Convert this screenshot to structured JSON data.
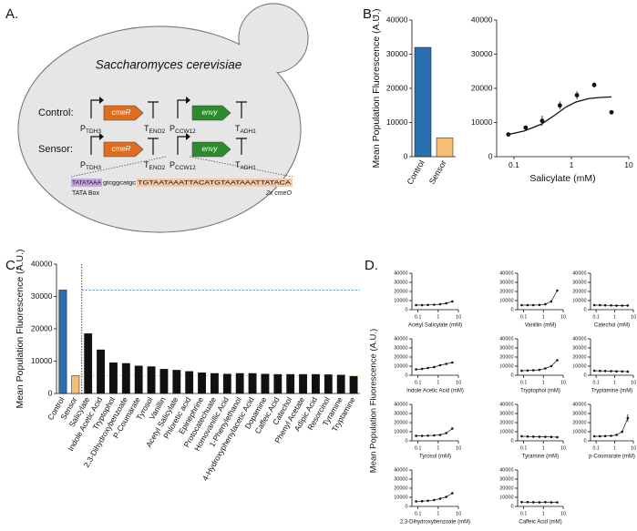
{
  "panel_labels": [
    "A.",
    "B.",
    "C.",
    "D."
  ],
  "diagram": {
    "title": "Saccharomyces cerevisiae",
    "constructs": [
      {
        "label": "Control:",
        "promoter1": {
          "main": "P",
          "sub": "TDH3"
        },
        "gene1": "cmeR",
        "terminator1": {
          "main": "T",
          "sub": "ENO2"
        },
        "promoter2": {
          "main": "P",
          "sub": "CCW12"
        },
        "gene2": "envy",
        "terminator2": {
          "main": "T",
          "sub": "ADH1"
        }
      },
      {
        "label": "Sensor:",
        "promoter1": {
          "main": "P",
          "sub": "TDH3"
        },
        "gene1": "cmeR",
        "terminator1": {
          "main": "T",
          "sub": "ENO2"
        },
        "promoter2": {
          "main": "P",
          "sub": "CCW12"
        },
        "gene2": "envy",
        "terminator2": {
          "main": "T",
          "sub": "ADH1"
        }
      }
    ],
    "sequence": {
      "tata": "TATATAAA",
      "spacer": "gtcggcatgc",
      "operator": "TGTAATAAATTACATGTAATAAATTATACA",
      "tata_label": "TATA Box",
      "operator_label": "2x cmeO"
    }
  },
  "chart_data": [
    {
      "type": "bar",
      "y_label": "Mean Population Fluorescence (A.U.)",
      "categories": [
        "Control",
        "Sensor"
      ],
      "values": [
        32000,
        5500
      ],
      "colors": [
        "#2a6fb0",
        "#f6bd74"
      ],
      "ylim": [
        0,
        40000
      ],
      "yticks": [
        0,
        10000,
        20000,
        30000,
        40000
      ]
    },
    {
      "type": "scatter",
      "x_label": "Salicylate (mM)",
      "x": [
        0.08,
        0.16,
        0.31,
        0.63,
        1.25,
        2.5,
        5
      ],
      "values": [
        6500,
        8500,
        10500,
        15000,
        18000,
        21000,
        13000
      ],
      "errors": [
        300,
        500,
        1500,
        1200,
        1200,
        800,
        400
      ],
      "fit": {
        "x": [
          0.08,
          0.15,
          0.3,
          0.5,
          0.8,
          1.2,
          2,
          3,
          5
        ],
        "values": [
          6500,
          7500,
          9500,
          12000,
          14500,
          16000,
          17000,
          17300,
          17500
        ]
      },
      "xscale": "log",
      "xlim": [
        0.05,
        10
      ],
      "xticks": [
        0.1,
        1,
        10
      ],
      "ylim": [
        0,
        40000
      ],
      "yticks": [
        0,
        10000,
        20000,
        30000,
        40000
      ],
      "color": "#111111"
    },
    {
      "type": "bar",
      "y_label": "Mean Population Fluorescence (A.U.)",
      "reference_lines": true,
      "categories": [
        "Control",
        "Sensor",
        "Salicylate",
        "Indole Acetic Acid",
        "Tryptophol",
        "2,3-Dihydroxybenzoate",
        "P-Coumarate",
        "Tyrosol",
        "Vanillin",
        "Acetyl Salicylate",
        "Phloretic acid",
        "Epinephrine",
        "Protocatechuate",
        "Homovanillic Acid",
        "1-Phenylethanol",
        "4-Hydroxyphenylacetic Acid",
        "Dopamine",
        "Caffeic Acid",
        "Catechol",
        "Phenyl Acetate",
        "Adipic Acid",
        "Resorcinol",
        "Tyramine",
        "Tryptamine"
      ],
      "values": [
        32000,
        5500,
        18500,
        13500,
        9500,
        9300,
        8500,
        8300,
        7500,
        7200,
        6800,
        6400,
        6200,
        6000,
        6200,
        6200,
        6000,
        5900,
        5900,
        5900,
        5900,
        5800,
        5700,
        5300
      ],
      "colors": [
        "#2a6fb0",
        "#f6bd74",
        "#111111",
        "#111111",
        "#111111",
        "#111111",
        "#111111",
        "#111111",
        "#111111",
        "#111111",
        "#111111",
        "#111111",
        "#111111",
        "#111111",
        "#111111",
        "#111111",
        "#111111",
        "#111111",
        "#111111",
        "#111111",
        "#111111",
        "#111111",
        "#111111",
        "#111111"
      ],
      "ylim": [
        0,
        40000
      ],
      "yticks": [
        0,
        10000,
        20000,
        30000,
        40000
      ]
    },
    {
      "type": "line",
      "y_label": "Mean Population Fluorescence (A.U.)",
      "x_label": "Acetyl Salicylate (mM)",
      "x": [
        0.08,
        0.16,
        0.31,
        0.63,
        1.25,
        2.5,
        5
      ],
      "values": [
        5000,
        5000,
        5200,
        5500,
        6000,
        7000,
        9000
      ],
      "xscale": "log",
      "xlim": [
        0.05,
        10
      ],
      "xticks": [
        0.1,
        1,
        10
      ],
      "ylim": [
        0,
        40000
      ],
      "yticks": [
        0,
        10000,
        20000,
        30000,
        40000
      ],
      "color": "#111111"
    },
    {
      "type": "line",
      "x_label": "Vanillin (mM)",
      "x": [
        0.08,
        0.16,
        0.31,
        0.63,
        1.25,
        2.5,
        5
      ],
      "values": [
        5000,
        5000,
        5000,
        5200,
        6000,
        9000,
        21000
      ],
      "xscale": "log",
      "xlim": [
        0.05,
        10
      ],
      "xticks": [
        0.1,
        1,
        10
      ],
      "ylim": [
        0,
        40000
      ],
      "yticks": [
        0,
        10000,
        20000,
        30000,
        40000
      ],
      "color": "#111111"
    },
    {
      "type": "line",
      "x_label": "Catechol (mM)",
      "x": [
        0.08,
        0.16,
        0.31,
        0.63,
        1.25,
        2.5,
        5
      ],
      "values": [
        5000,
        5000,
        4800,
        4700,
        4500,
        4500,
        4600
      ],
      "xscale": "log",
      "xlim": [
        0.05,
        10
      ],
      "xticks": [
        0.1,
        1,
        10
      ],
      "ylim": [
        0,
        40000
      ],
      "yticks": [
        0,
        10000,
        20000,
        30000,
        40000
      ],
      "color": "#111111"
    },
    {
      "type": "line",
      "x_label": "Indole Acetic Acid (mM)",
      "x": [
        0.08,
        0.16,
        0.31,
        0.63,
        1.25,
        2.5,
        5
      ],
      "values": [
        6500,
        7000,
        8000,
        9000,
        11000,
        12500,
        14000
      ],
      "xscale": "log",
      "xlim": [
        0.05,
        10
      ],
      "xticks": [
        0.1,
        1,
        10
      ],
      "ylim": [
        0,
        40000
      ],
      "yticks": [
        0,
        10000,
        20000,
        30000,
        40000
      ],
      "color": "#111111"
    },
    {
      "type": "line",
      "x_label": "Tryptophol (mM)",
      "x": [
        0.08,
        0.16,
        0.31,
        0.63,
        1.25,
        2.5,
        5
      ],
      "values": [
        5000,
        5200,
        5500,
        6000,
        7500,
        10000,
        16500
      ],
      "xscale": "log",
      "xlim": [
        0.05,
        10
      ],
      "xticks": [
        0.1,
        1,
        10
      ],
      "ylim": [
        0,
        40000
      ],
      "yticks": [
        0,
        10000,
        20000,
        30000,
        40000
      ],
      "color": "#111111"
    },
    {
      "type": "line",
      "x_label": "Tryptamine (mM)",
      "x": [
        0.08,
        0.16,
        0.31,
        0.63,
        1.25,
        2.5,
        5
      ],
      "values": [
        5000,
        4800,
        4700,
        4500,
        4300,
        4200,
        4000
      ],
      "xscale": "log",
      "xlim": [
        0.05,
        10
      ],
      "xticks": [
        0.1,
        1,
        10
      ],
      "ylim": [
        0,
        40000
      ],
      "yticks": [
        0,
        10000,
        20000,
        30000,
        40000
      ],
      "color": "#111111"
    },
    {
      "type": "line",
      "x_label": "Tyrosol (mM)",
      "x": [
        0.08,
        0.16,
        0.31,
        0.63,
        1.25,
        2.5,
        5
      ],
      "values": [
        5500,
        5500,
        5700,
        6000,
        6500,
        8500,
        13500
      ],
      "xscale": "log",
      "xlim": [
        0.05,
        10
      ],
      "xticks": [
        0.1,
        1,
        10
      ],
      "ylim": [
        0,
        40000
      ],
      "yticks": [
        0,
        10000,
        20000,
        30000,
        40000
      ],
      "color": "#111111"
    },
    {
      "type": "line",
      "x_label": "Tyramine (mM)",
      "x": [
        0.08,
        0.16,
        0.31,
        0.63,
        1.25,
        2.5,
        5
      ],
      "values": [
        5000,
        4800,
        4600,
        4500,
        4400,
        4300,
        4000
      ],
      "xscale": "log",
      "xlim": [
        0.05,
        10
      ],
      "xticks": [
        0.1,
        1,
        10
      ],
      "ylim": [
        0,
        40000
      ],
      "yticks": [
        0,
        10000,
        20000,
        30000,
        40000
      ],
      "color": "#111111"
    },
    {
      "type": "line",
      "x_label": "p-Coumarate (mM)",
      "x": [
        0.08,
        0.16,
        0.31,
        0.63,
        1.25,
        2.5,
        5
      ],
      "values": [
        5000,
        5000,
        5200,
        5500,
        6500,
        10000,
        25000
      ],
      "errors": [
        0,
        0,
        0,
        0,
        300,
        1500,
        4000
      ],
      "xscale": "log",
      "xlim": [
        0.05,
        10
      ],
      "xticks": [
        0.1,
        1,
        10
      ],
      "ylim": [
        0,
        40000
      ],
      "yticks": [
        0,
        10000,
        20000,
        30000,
        40000
      ],
      "color": "#111111"
    },
    {
      "type": "line",
      "x_label": "2,3-Dihydroxybenzoate (mM)",
      "x": [
        0.08,
        0.16,
        0.31,
        0.63,
        1.25,
        2.5,
        5
      ],
      "values": [
        5500,
        5800,
        6200,
        7000,
        8500,
        10500,
        14500
      ],
      "xscale": "log",
      "xlim": [
        0.05,
        10
      ],
      "xticks": [
        0.1,
        1,
        10
      ],
      "ylim": [
        0,
        40000
      ],
      "yticks": [
        0,
        10000,
        20000,
        30000,
        40000
      ],
      "color": "#111111"
    },
    {
      "type": "line",
      "x_label": "Caffeic Acid (mM)",
      "x": [
        0.08,
        0.16,
        0.31,
        0.63,
        1.25,
        2.5,
        5
      ],
      "values": [
        4800,
        4700,
        4600,
        4500,
        4700,
        4500,
        4500
      ],
      "xscale": "log",
      "xlim": [
        0.05,
        10
      ],
      "xticks": [
        0.1,
        1,
        10
      ],
      "ylim": [
        0,
        40000
      ],
      "yticks": [
        0,
        10000,
        20000,
        30000,
        40000
      ],
      "color": "#111111"
    }
  ]
}
